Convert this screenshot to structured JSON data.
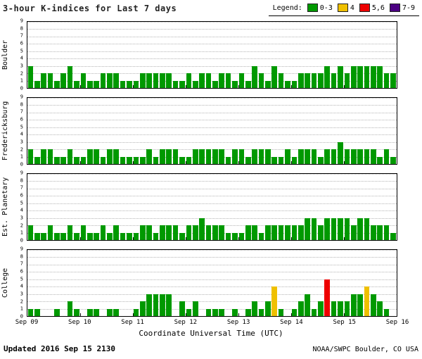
{
  "header": {
    "title": "3-hour K-indices for Last 7 days",
    "legend_label": "Legend:"
  },
  "colors": {
    "green": "#009900",
    "yellow": "#EFC000",
    "red": "#EE0000",
    "purple": "#4B0082"
  },
  "footer": {
    "updated": "Updated 2016 Sep 15 2130",
    "source": "NOAA/SWPC Boulder, CO USA"
  },
  "chart_data": {
    "type": "bar",
    "title": "3-hour K-indices for Last 7 days",
    "xlabel": "Coordinate Universal Time (UTC)",
    "x_tick_labels": [
      "Sep 09",
      "Sep 10",
      "Sep 11",
      "Sep 12",
      "Sep 13",
      "Sep 14",
      "Sep 15",
      "Sep 16"
    ],
    "ylim": [
      0,
      9
    ],
    "y_tick_labels": [
      0,
      1,
      2,
      3,
      4,
      5,
      6,
      7,
      8,
      9
    ],
    "bars_per_day": 8,
    "grid": "dotted horizontal",
    "legend_position": "top-right",
    "legend": [
      {
        "label": "0-3",
        "color_key": "green"
      },
      {
        "label": "4",
        "color_key": "yellow"
      },
      {
        "label": "5,6",
        "color_key": "red"
      },
      {
        "label": "7-9",
        "color_key": "purple"
      }
    ],
    "series": [
      {
        "name": "Boulder",
        "values": [
          3,
          1,
          2,
          2,
          1,
          2,
          3,
          1,
          2,
          1,
          1,
          2,
          2,
          2,
          1,
          1,
          1,
          2,
          2,
          2,
          2,
          2,
          1,
          1,
          2,
          1,
          2,
          2,
          1,
          2,
          2,
          1,
          2,
          1,
          3,
          2,
          1,
          3,
          2,
          1,
          1,
          2,
          2,
          2,
          2,
          3,
          2,
          3,
          2,
          3,
          3,
          3,
          3,
          3,
          2,
          2
        ]
      },
      {
        "name": "Fredericksburg",
        "values": [
          2,
          1,
          2,
          2,
          1,
          1,
          2,
          1,
          1,
          2,
          2,
          1,
          2,
          2,
          1,
          1,
          1,
          1,
          2,
          1,
          2,
          2,
          2,
          1,
          1,
          2,
          2,
          2,
          2,
          2,
          1,
          2,
          2,
          1,
          2,
          2,
          2,
          1,
          1,
          2,
          1,
          2,
          2,
          2,
          1,
          2,
          2,
          3,
          2,
          2,
          2,
          2,
          2,
          1,
          2,
          1
        ]
      },
      {
        "name": "Est. Planetary",
        "values": [
          2,
          1,
          1,
          2,
          1,
          1,
          2,
          1,
          2,
          1,
          1,
          2,
          1,
          2,
          1,
          1,
          1,
          2,
          2,
          1,
          2,
          2,
          2,
          1,
          2,
          2,
          3,
          2,
          2,
          2,
          1,
          1,
          1,
          2,
          2,
          1,
          2,
          2,
          2,
          2,
          2,
          2,
          3,
          3,
          2,
          3,
          3,
          3,
          3,
          2,
          3,
          3,
          2,
          2,
          2,
          1
        ]
      },
      {
        "name": "College",
        "values": [
          1,
          1,
          0,
          0,
          1,
          0,
          2,
          1,
          0,
          1,
          1,
          0,
          1,
          1,
          0,
          0,
          1,
          2,
          3,
          3,
          3,
          3,
          0,
          2,
          1,
          2,
          0,
          1,
          1,
          1,
          0,
          1,
          0,
          1,
          2,
          1,
          2,
          4,
          1,
          0,
          1,
          2,
          3,
          1,
          2,
          5,
          2,
          2,
          2,
          3,
          3,
          4,
          3,
          2,
          1,
          0
        ]
      }
    ]
  }
}
